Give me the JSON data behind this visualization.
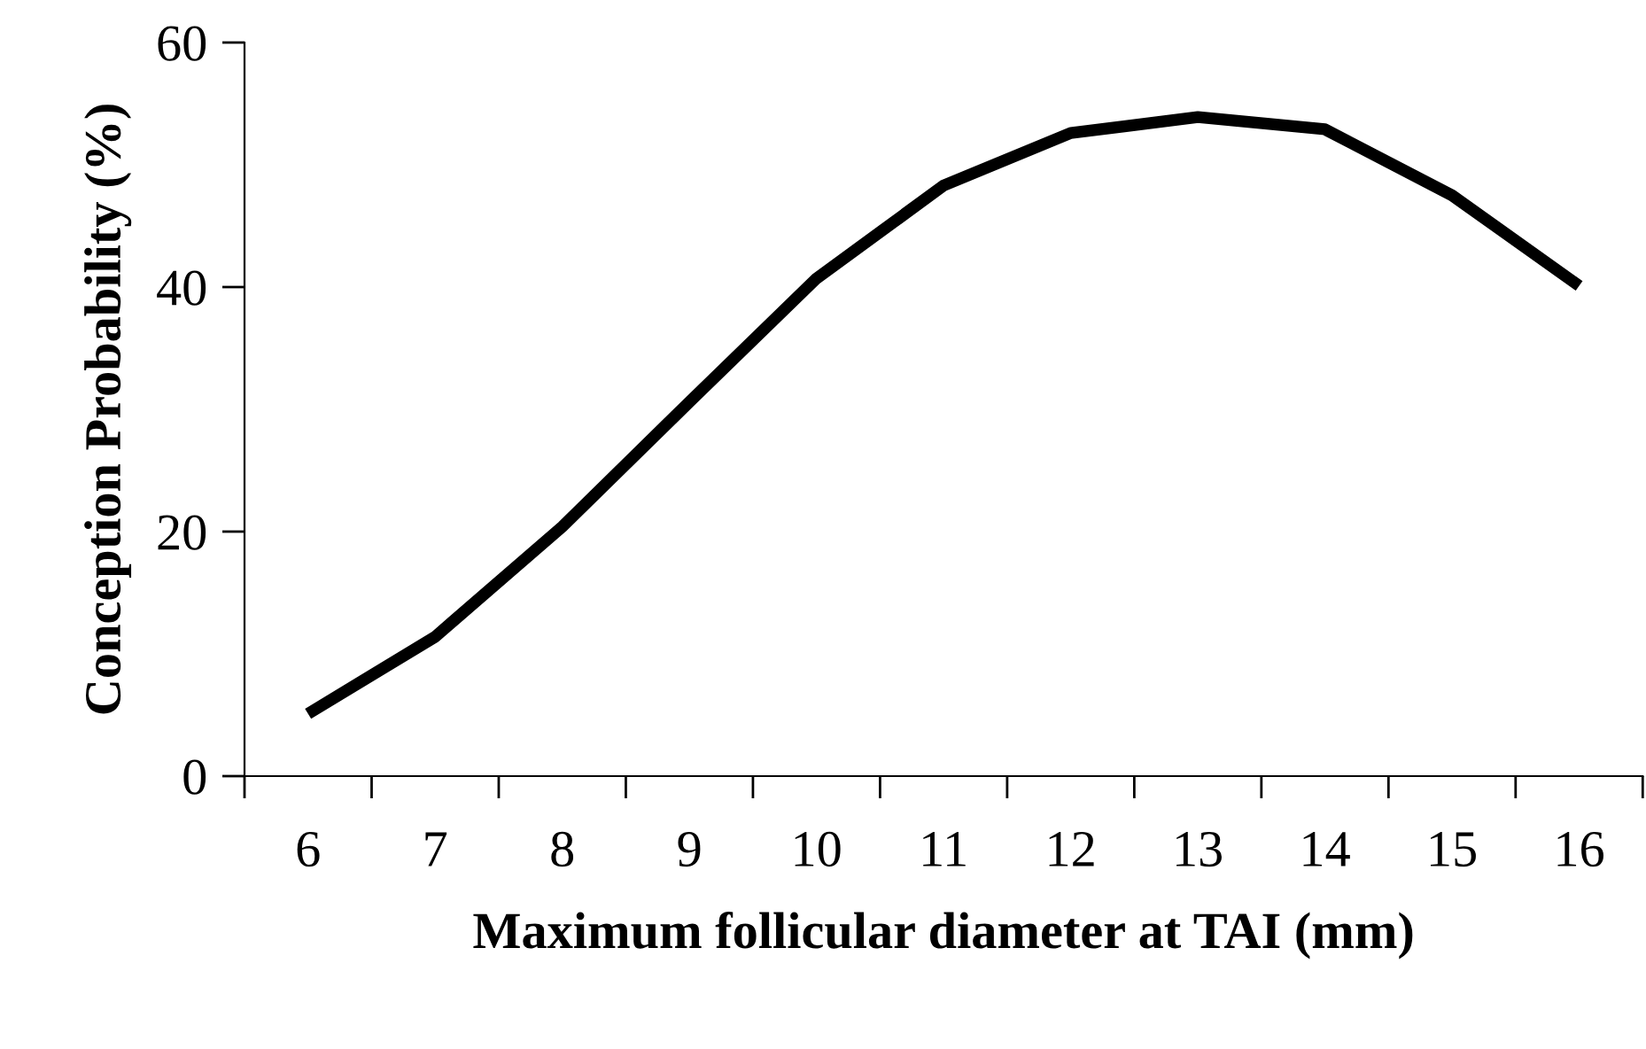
{
  "chart_data": {
    "type": "line",
    "xlabel": "Maximum follicular diameter at TAI (mm)",
    "ylabel": "Conception Probability (%)",
    "categories": [
      "6",
      "7",
      "8",
      "9",
      "10",
      "11",
      "12",
      "13",
      "14",
      "15",
      "16"
    ],
    "series": [
      {
        "color": "#000000",
        "values": [
          5.1,
          11.4,
          20.4,
          30.6,
          40.7,
          48.3,
          52.6,
          53.9,
          52.9,
          47.5,
          40.1
        ]
      }
    ],
    "ylim": [
      0,
      60
    ],
    "yticks": [
      0,
      20,
      40,
      60
    ],
    "grid": false,
    "legend": false,
    "marker": "none",
    "line_style": "solid"
  }
}
